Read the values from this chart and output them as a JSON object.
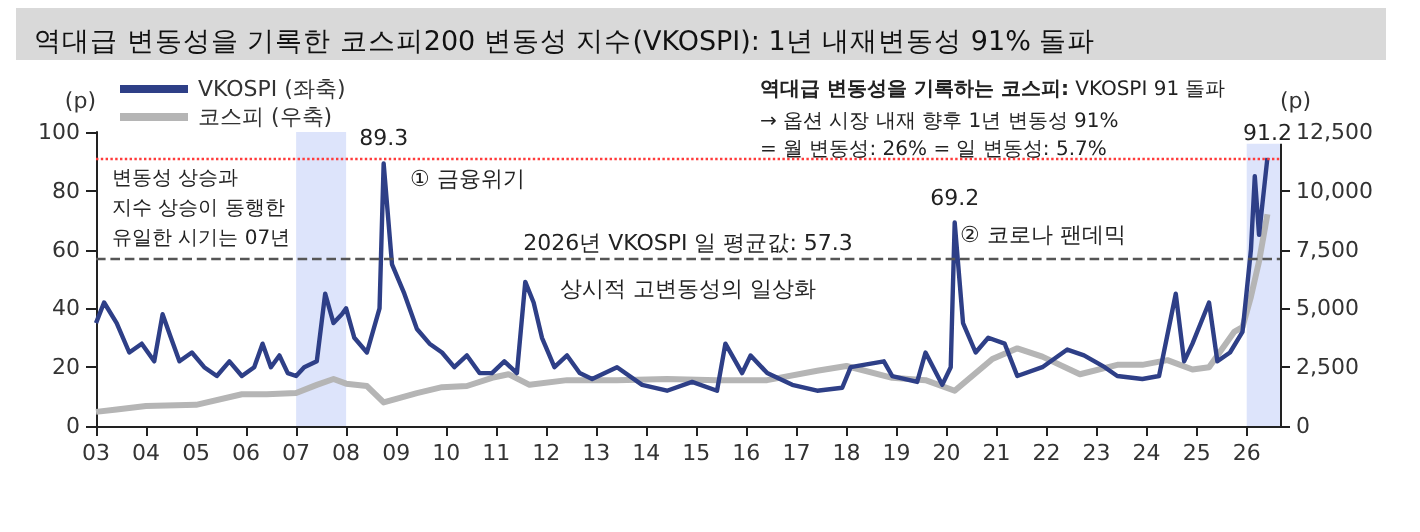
{
  "chart_data": {
    "type": "line",
    "title": "역대급 변동성을 기록한 코스피200 변동성 지수(VKOSPI): 1년 내재변동성 91% 돌파",
    "ylabel": "(p)",
    "y2label": "(p)",
    "legend": "top left",
    "marker": "none",
    "grid": false,
    "annotations": [
      {
        "text": "89.3",
        "x": "2008-10",
        "y": 89.3
      },
      {
        "text": "69.2",
        "x": "2020-03",
        "y": 69.2
      },
      {
        "text": "91.2",
        "x": "2026-06",
        "y": 91.2
      },
      "① 금융위기",
      "② 코로나 팬데믹",
      "변동성 상승과\n지수 상승이 동행한\n유일한 시기는 07년",
      "상시적 고변동성의 일상화",
      "역대급 변동성을 기록하는 코스피:",
      "VKOSPI 91 돌파",
      "→ 옵션 시장 내재 향후 1년 변동성 91%",
      "= 월 변동성: 26% = 일 변동성: 5.7%"
    ],
    "ref_lines": [
      {
        "axis": "y",
        "value": 91.2,
        "label": null,
        "color": "#ff3b3b",
        "line_style": "dotted"
      },
      {
        "axis": "y",
        "value": 57.3,
        "label": "2026년 VKOSPI 일 평균값: 57.3",
        "color": "#555555",
        "line_style": "dashed"
      }
    ],
    "bands": [
      {
        "axis": "x",
        "from": "2007-01",
        "to": "2008-01",
        "label": null,
        "color": "#dde4fb"
      },
      {
        "axis": "x",
        "from": "2026-01",
        "to": "2026-09",
        "label": null,
        "color": "#dde4fb"
      }
    ],
    "xlim": [
      "2003-01",
      "2026-09"
    ],
    "xticks": [
      {
        "value": "2003",
        "label": "03"
      },
      {
        "value": "2004",
        "label": "04"
      },
      {
        "value": "2005",
        "label": "05"
      },
      {
        "value": "2006",
        "label": "06"
      },
      {
        "value": "2007",
        "label": "07"
      },
      {
        "value": "2008",
        "label": "08"
      },
      {
        "value": "2009",
        "label": "09"
      },
      {
        "value": "2010",
        "label": "10"
      },
      {
        "value": "2011",
        "label": "11"
      },
      {
        "value": "2012",
        "label": "12"
      },
      {
        "value": "2013",
        "label": "13"
      },
      {
        "value": "2014",
        "label": "14"
      },
      {
        "value": "2015",
        "label": "15"
      },
      {
        "value": "2016",
        "label": "16"
      },
      {
        "value": "2017",
        "label": "17"
      },
      {
        "value": "2018",
        "label": "18"
      },
      {
        "value": "2019",
        "label": "19"
      },
      {
        "value": "2020",
        "label": "20"
      },
      {
        "value": "2021",
        "label": "21"
      },
      {
        "value": "2022",
        "label": "22"
      },
      {
        "value": "2023",
        "label": "23"
      },
      {
        "value": "2024",
        "label": "24"
      },
      {
        "value": "2025",
        "label": "25"
      },
      {
        "value": "2026",
        "label": "26"
      }
    ],
    "ylim": [
      0,
      100
    ],
    "yticks": [
      0,
      20,
      40,
      60,
      80,
      100
    ],
    "y2lim": [
      0,
      12500
    ],
    "y2ticks": [
      0,
      {
        "value": 2500,
        "label": "2,500"
      },
      {
        "value": 5000,
        "label": "5,000"
      },
      {
        "value": 7500,
        "label": "7,500"
      },
      {
        "value": 10000,
        "label": "10,000"
      },
      {
        "value": 12500,
        "label": "12,500"
      }
    ],
    "series": [
      {
        "name": "VKOSPI (좌축)",
        "color": "#2e3f87",
        "x": [
          "2003-01",
          "2003-03",
          "2003-06",
          "2003-09",
          "2003-12",
          "2004-03",
          "2004-05",
          "2004-07",
          "2004-09",
          "2004-12",
          "2005-03",
          "2005-06",
          "2005-09",
          "2005-12",
          "2006-03",
          "2006-05",
          "2006-07",
          "2006-09",
          "2006-11",
          "2007-01",
          "2007-03",
          "2007-06",
          "2007-08",
          "2007-10",
          "2007-12",
          "2008-01",
          "2008-03",
          "2008-06",
          "2008-09",
          "2008-10",
          "2008-12",
          "2009-03",
          "2009-06",
          "2009-09",
          "2009-12",
          "2010-03",
          "2010-06",
          "2010-09",
          "2010-12",
          "2011-03",
          "2011-06",
          "2011-08",
          "2011-10",
          "2011-12",
          "2012-03",
          "2012-06",
          "2012-09",
          "2012-12",
          "2013-06",
          "2013-12",
          "2014-06",
          "2014-12",
          "2015-06",
          "2015-08",
          "2015-12",
          "2016-02",
          "2016-06",
          "2016-12",
          "2017-06",
          "2017-12",
          "2018-02",
          "2018-10",
          "2018-12",
          "2019-06",
          "2019-08",
          "2019-12",
          "2020-02",
          "2020-03",
          "2020-05",
          "2020-08",
          "2020-11",
          "2021-03",
          "2021-06",
          "2021-12",
          "2022-06",
          "2022-10",
          "2023-03",
          "2023-06",
          "2023-12",
          "2024-04",
          "2024-08",
          "2024-10",
          "2024-12",
          "2025-04",
          "2025-06",
          "2025-09",
          "2025-12",
          "2026-02",
          "2026-03",
          "2026-04",
          "2026-06"
        ],
        "values": [
          35,
          42,
          35,
          25,
          28,
          22,
          38,
          30,
          22,
          25,
          20,
          17,
          22,
          17,
          20,
          28,
          20,
          24,
          18,
          17,
          20,
          22,
          45,
          35,
          38,
          40,
          30,
          25,
          40,
          89.3,
          55,
          45,
          33,
          28,
          25,
          20,
          24,
          18,
          18,
          22,
          18,
          49,
          42,
          30,
          20,
          24,
          18,
          16,
          20,
          14,
          12,
          15,
          12,
          28,
          18,
          24,
          18,
          14,
          12,
          13,
          20,
          22,
          17,
          15,
          25,
          14,
          20,
          69.2,
          35,
          25,
          30,
          28,
          17,
          20,
          26,
          24,
          20,
          17,
          16,
          17,
          45,
          22,
          28,
          42,
          22,
          25,
          32,
          60,
          85,
          65,
          91.2
        ]
      },
      {
        "name": "코스피 (우축)",
        "color": "#b5b5b5",
        "axis": "y2",
        "x": [
          "2003-01",
          "2003-06",
          "2004-01",
          "2005-01",
          "2005-12",
          "2006-06",
          "2007-01",
          "2007-06",
          "2007-10",
          "2008-01",
          "2008-06",
          "2008-10",
          "2009-01",
          "2009-06",
          "2009-12",
          "2010-06",
          "2010-12",
          "2011-04",
          "2011-09",
          "2012-06",
          "2013-06",
          "2014-06",
          "2015-06",
          "2016-06",
          "2017-06",
          "2018-01",
          "2018-12",
          "2019-08",
          "2020-03",
          "2020-12",
          "2021-06",
          "2021-12",
          "2022-09",
          "2023-06",
          "2023-12",
          "2024-06",
          "2024-12",
          "2025-04",
          "2025-06",
          "2025-10",
          "2025-12",
          "2026-02",
          "2026-04",
          "2026-06"
        ],
        "values": [
          600,
          700,
          850,
          900,
          1350,
          1350,
          1400,
          1750,
          2000,
          1800,
          1700,
          1000,
          1150,
          1400,
          1650,
          1700,
          2050,
          2200,
          1750,
          1950,
          1950,
          2000,
          1950,
          1950,
          2350,
          2550,
          2050,
          1950,
          1500,
          2850,
          3300,
          2950,
          2200,
          2600,
          2600,
          2800,
          2400,
          2500,
          3000,
          4000,
          4200,
          5500,
          7000,
          9000
        ]
      }
    ]
  }
}
